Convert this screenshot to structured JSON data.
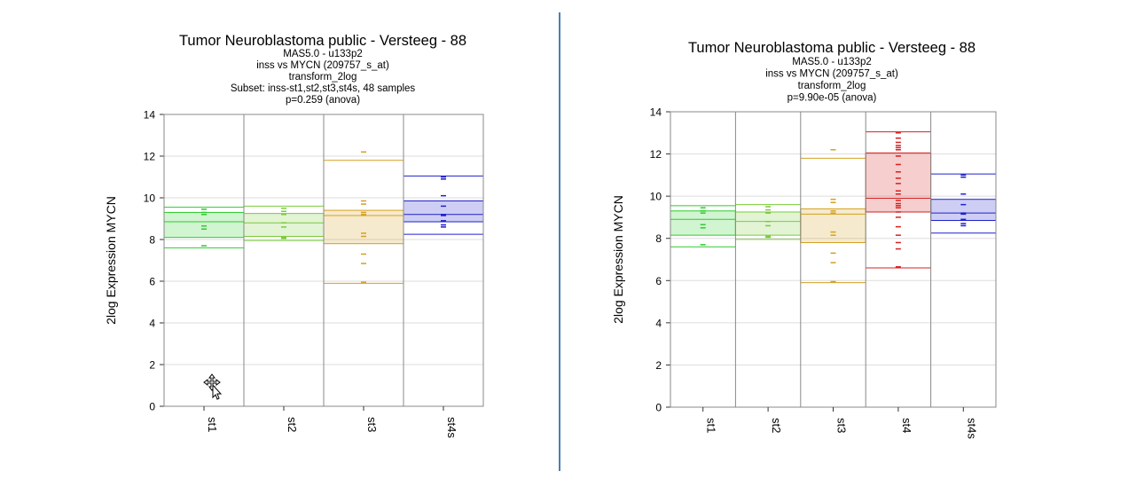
{
  "colors": {
    "st1": "#2ecc2e",
    "st2": "#7acc3a",
    "st3": "#d4a020",
    "st4": "#d42020",
    "st4s": "#2020cc",
    "divider": "#4a7fb5",
    "frame": "#888888",
    "grid": "#dddddd"
  },
  "cursor_icon": "move-cursor-icon",
  "chart_data": [
    {
      "type": "box",
      "title": "Tumor Neuroblastoma public - Versteeg - 88",
      "subtitle_lines": [
        "MAS5.0 - u133p2",
        "inss vs MYCN (209757_s_at)",
        "transform_2log",
        "Subset: inss-st1,st2,st3,st4s, 48 samples",
        "p=0.259  (anova)"
      ],
      "ylabel": "2log Expression MYCN",
      "ylim": [
        0,
        14
      ],
      "yticks": [
        "0",
        "2",
        "4",
        "6",
        "8",
        "10",
        "12",
        "14"
      ],
      "grid": true,
      "categories": [
        "st1",
        "st2",
        "st3",
        "st4s"
      ],
      "series": [
        {
          "category": "st1",
          "color_key": "st1",
          "whisker_low": 7.6,
          "q1": 8.1,
          "median": 8.85,
          "q3": 9.3,
          "whisker_high": 9.55,
          "points": [
            7.7,
            8.5,
            8.65,
            9.2,
            9.3,
            9.45
          ]
        },
        {
          "category": "st2",
          "color_key": "st2",
          "whisker_low": 7.95,
          "q1": 8.15,
          "median": 8.8,
          "q3": 9.25,
          "whisker_high": 9.6,
          "points": [
            8.05,
            8.1,
            8.6,
            8.8,
            9.2,
            9.35,
            9.5
          ]
        },
        {
          "category": "st3",
          "color_key": "st3",
          "whisker_low": 5.9,
          "q1": 7.8,
          "median": 9.15,
          "q3": 9.4,
          "whisker_high": 11.8,
          "points": [
            5.95,
            6.85,
            7.3,
            8.15,
            8.3,
            9.2,
            9.3,
            9.7,
            9.85,
            12.2
          ]
        },
        {
          "category": "st4s",
          "color_key": "st4s",
          "whisker_low": 8.25,
          "q1": 8.85,
          "median": 9.2,
          "q3": 9.85,
          "whisker_high": 11.05,
          "points": [
            8.6,
            8.7,
            8.9,
            9.15,
            9.2,
            9.6,
            10.1,
            10.9,
            11.0
          ]
        }
      ]
    },
    {
      "type": "box",
      "title": "Tumor Neuroblastoma public - Versteeg - 88",
      "subtitle_lines": [
        "MAS5.0 - u133p2",
        "inss vs MYCN (209757_s_at)",
        "transform_2log",
        "p=9.90e-05  (anova)"
      ],
      "ylabel": "2log Expression MYCN",
      "ylim": [
        0,
        14
      ],
      "yticks": [
        "0",
        "2",
        "4",
        "6",
        "8",
        "10",
        "12",
        "14"
      ],
      "grid": true,
      "categories": [
        "st1",
        "st2",
        "st3",
        "st4",
        "st4s"
      ],
      "series": [
        {
          "category": "st1",
          "color_key": "st1",
          "whisker_low": 7.6,
          "q1": 8.15,
          "median": 8.9,
          "q3": 9.3,
          "whisker_high": 9.55,
          "points": [
            7.7,
            8.5,
            8.65,
            9.2,
            9.3,
            9.45
          ]
        },
        {
          "category": "st2",
          "color_key": "st2",
          "whisker_low": 7.95,
          "q1": 8.15,
          "median": 8.8,
          "q3": 9.25,
          "whisker_high": 9.6,
          "points": [
            8.05,
            8.1,
            8.6,
            8.8,
            9.2,
            9.35,
            9.5
          ]
        },
        {
          "category": "st3",
          "color_key": "st3",
          "whisker_low": 5.9,
          "q1": 7.8,
          "median": 9.15,
          "q3": 9.4,
          "whisker_high": 11.8,
          "points": [
            5.95,
            6.85,
            7.3,
            8.15,
            8.3,
            9.2,
            9.3,
            9.7,
            9.85,
            12.2
          ]
        },
        {
          "category": "st4",
          "color_key": "st4",
          "whisker_low": 6.6,
          "q1": 9.25,
          "median": 9.9,
          "q3": 12.05,
          "whisker_high": 13.05,
          "points": [
            6.65,
            7.5,
            7.8,
            8.15,
            8.55,
            9.0,
            9.25,
            9.45,
            9.55,
            9.65,
            9.8,
            10.1,
            10.25,
            10.6,
            10.85,
            11.15,
            11.5,
            11.9,
            12.2,
            12.3,
            12.4,
            12.55,
            12.75,
            13.0
          ]
        },
        {
          "category": "st4s",
          "color_key": "st4s",
          "whisker_low": 8.25,
          "q1": 8.85,
          "median": 9.2,
          "q3": 9.85,
          "whisker_high": 11.05,
          "points": [
            8.6,
            8.7,
            8.9,
            9.15,
            9.2,
            9.6,
            10.1,
            10.9,
            11.0
          ]
        }
      ]
    }
  ]
}
